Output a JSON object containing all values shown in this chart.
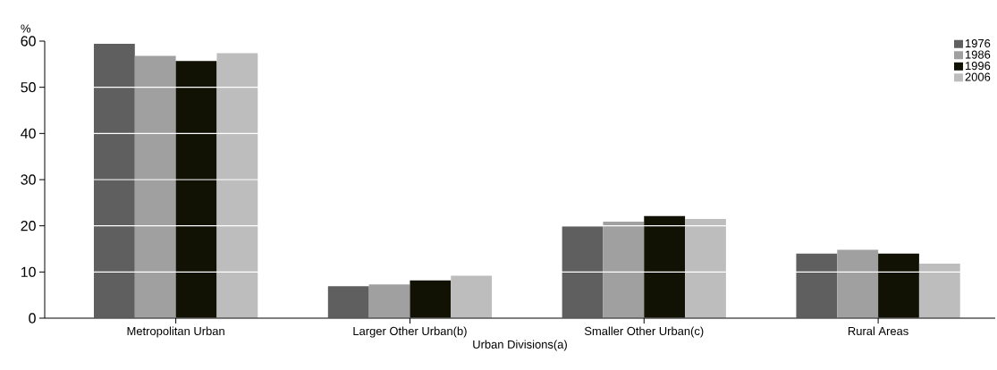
{
  "chart_data": {
    "type": "bar",
    "xlabel": "Urban Divisions(a)",
    "ylabel": "%",
    "categories": [
      "Metropolitan Urban",
      "Larger Other Urban(b)",
      "Smaller Other Urban(c)",
      "Rural Areas"
    ],
    "series": [
      {
        "name": "1976",
        "color": "#5f5f5f",
        "values": [
          59.4,
          6.9,
          19.9,
          14.0
        ]
      },
      {
        "name": "1986",
        "color": "#a0a0a0",
        "values": [
          56.8,
          7.3,
          20.9,
          14.8
        ]
      },
      {
        "name": "1996",
        "color": "#111104",
        "values": [
          55.7,
          8.2,
          22.1,
          14.0
        ]
      },
      {
        "name": "2006",
        "color": "#bdbdbd",
        "values": [
          57.4,
          9.2,
          21.5,
          11.8
        ]
      }
    ],
    "ylim": [
      0,
      60
    ],
    "yticks": [
      0,
      10,
      20,
      30,
      40,
      50,
      60
    ],
    "grid": "y",
    "legend": "top right"
  }
}
